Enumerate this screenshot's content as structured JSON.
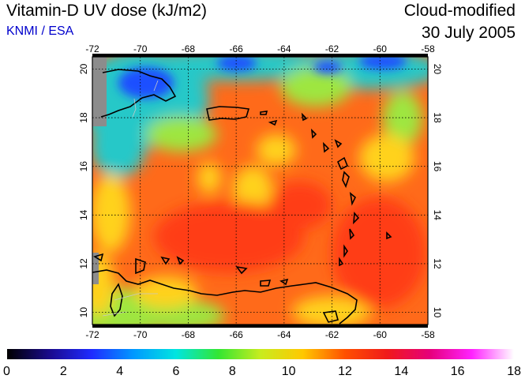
{
  "header": {
    "title": "Vitamin-D UV dose (kJ/m2)",
    "source": "KNMI / ESA",
    "product": "Cloud-modified",
    "date": "30 July 2005"
  },
  "map": {
    "lon_range": [
      -72,
      -58
    ],
    "lat_range": [
      9.5,
      20.5
    ],
    "lon_ticks": [
      -72,
      -70,
      -68,
      -66,
      -64,
      -62,
      -60,
      -58
    ],
    "lat_ticks": [
      20,
      18,
      16,
      14,
      12,
      10
    ],
    "gridlines": "dotted"
  },
  "colorbar": {
    "min": 0,
    "max": 18,
    "ticks": [
      0,
      2,
      4,
      6,
      8,
      10,
      12,
      14,
      16,
      18
    ],
    "colors": [
      "#000000",
      "#1a0a8c",
      "#1f2bff",
      "#0099ff",
      "#00e5e0",
      "#33e633",
      "#c8ec1e",
      "#ffc800",
      "#ff5000",
      "#f01a1a",
      "#e6007a",
      "#ff22ff",
      "#ffffff"
    ]
  },
  "field_colors": {
    "ocean_base": "#ff6a1a",
    "north_cloud": "#28c8c8",
    "south_green": "#9ee640",
    "yellow_patch": "#ffd21a",
    "deep_red": "#ff3c14",
    "blue_cloud": "#1e50ff",
    "no_data": "#8c8c8c"
  }
}
